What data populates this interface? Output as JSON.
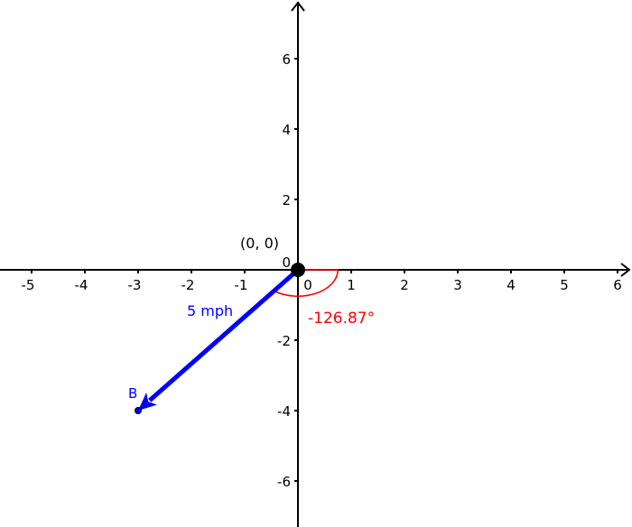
{
  "chart_data": {
    "type": "scatter",
    "xlim": [
      -5.6,
      6.3
    ],
    "ylim": [
      -7.2,
      7.6
    ],
    "grid": false,
    "x_ticks": [
      "-5",
      "-4",
      "-3",
      "-2",
      "-1",
      "0",
      "1",
      "2",
      "3",
      "4",
      "5",
      "6"
    ],
    "y_ticks": [
      "6",
      "4",
      "2",
      "0",
      "-2",
      "-4",
      "-6"
    ],
    "x_tick_values": [
      -5,
      -4,
      -3,
      -2,
      -1,
      0,
      1,
      2,
      3,
      4,
      5,
      6
    ],
    "y_tick_values": [
      6,
      4,
      2,
      0,
      -2,
      -4,
      -6
    ],
    "origin_point": {
      "label": "(0, 0)",
      "x": 0,
      "y": 0
    },
    "point_b": {
      "label": "B",
      "x": -3,
      "y": -4
    },
    "vector": {
      "label": "5 mph",
      "from": [
        0,
        0
      ],
      "to": [
        -3,
        -4
      ]
    },
    "angle": {
      "label": "-126.87°",
      "degrees": -126.87
    },
    "colors": {
      "axes": "#000000",
      "vector": "#0000ff",
      "angle": "#ff0000"
    }
  }
}
